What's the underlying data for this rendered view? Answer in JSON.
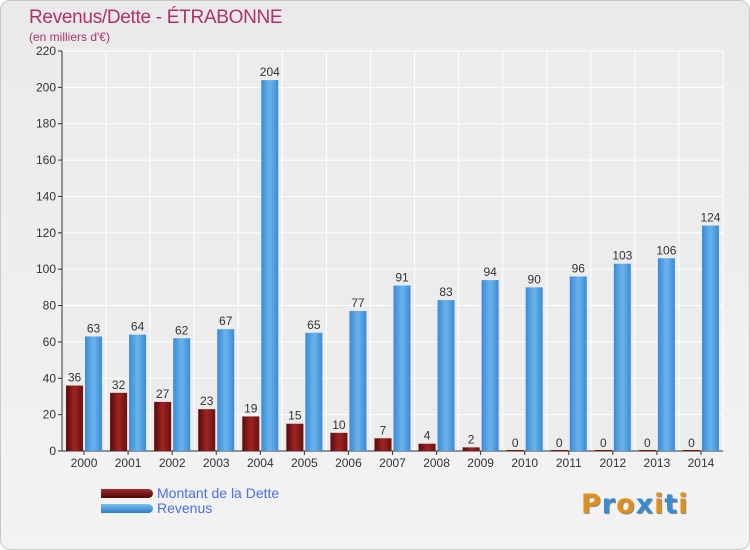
{
  "chart_data": {
    "type": "bar",
    "title": "Revenus/Dette - ÉTRABONNE",
    "subtitle": "(en milliers d'€)",
    "categories": [
      "2000",
      "2001",
      "2002",
      "2003",
      "2004",
      "2005",
      "2006",
      "2007",
      "2008",
      "2009",
      "2010",
      "2011",
      "2012",
      "2013",
      "2014"
    ],
    "series": [
      {
        "name": "Montant de la Dette",
        "color": "#7a1414",
        "values": [
          36,
          32,
          27,
          23,
          19,
          15,
          10,
          7,
          4,
          2,
          0,
          0,
          0,
          0,
          0
        ]
      },
      {
        "name": "Revenus",
        "color": "#4a9fe0",
        "values": [
          63,
          64,
          62,
          67,
          204,
          65,
          77,
          91,
          83,
          94,
          90,
          96,
          103,
          106,
          124
        ]
      }
    ],
    "ylim": [
      0,
      220
    ],
    "yticks": [
      0,
      20,
      40,
      60,
      80,
      100,
      120,
      140,
      160,
      180,
      200,
      220
    ],
    "grid": true,
    "legend_position": "bottom-left"
  },
  "logo": {
    "letters": [
      "P",
      "r",
      "o",
      "x",
      "i",
      "t",
      "i"
    ],
    "colors": [
      "#e0901a",
      "#3a8ad0",
      "#e0901a",
      "#3a8ad0",
      "#e0901a",
      "#3a8ad0",
      "#e0901a"
    ]
  }
}
